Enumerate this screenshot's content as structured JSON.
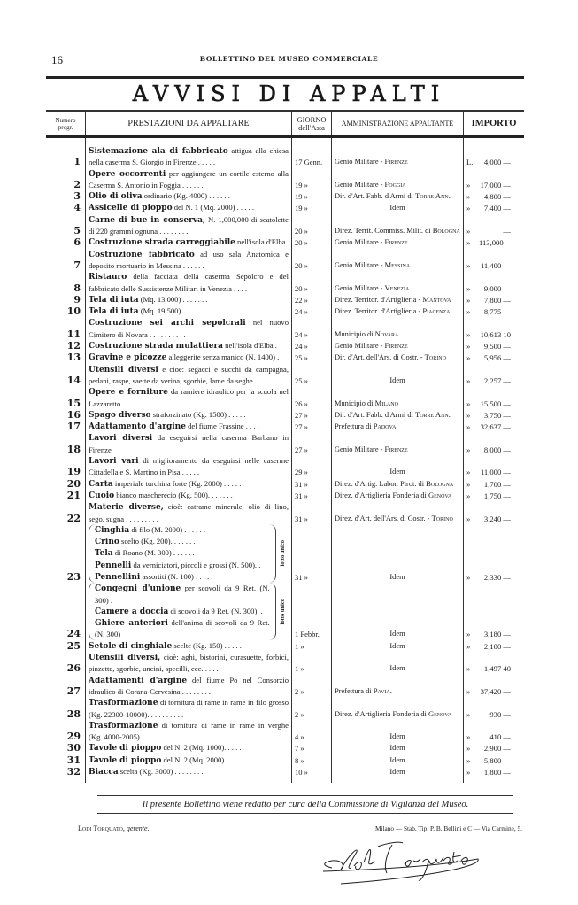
{
  "header": {
    "page_number": "16",
    "running_title": "BOLLETTINO DEL MUSEO COMMERCIALE",
    "title": "AVVISI DI APPALTI"
  },
  "columns": {
    "num_1": "Numero",
    "num_2": "progr.",
    "prestazioni": "PRESTAZIONI DA APPALTARE",
    "giorno_1": "GIORNO",
    "giorno_2": "dell'Asta",
    "amministrazione": "AMMINISTRAZIONE APPALTANTE",
    "importo": "IMPORTO"
  },
  "rows": [
    {
      "num": "1",
      "bold": "Sistemazione ala di fabbricato",
      "text": " attigua alla chiesa nella caserma S. Giorgio in Firenze . . . . .",
      "date": "17 Genn.",
      "admin": "Genio Militare - ",
      "city": "Firenze",
      "cur": "L.",
      "amount": "4,000 —"
    },
    {
      "num": "2",
      "bold": "Opere occorrenti",
      "text": " per aggiungere un cortile esterno alla Caserma S. Antonio in Foggia . . . . . .",
      "date": "19 »",
      "admin": "Genio Militare - ",
      "city": "Foggia",
      "cur": "»",
      "amount": "17,000 —"
    },
    {
      "num": "3",
      "bold": "Olio di oliva",
      "text": " ordinario (Kg. 4000) . . . . . .",
      "date": "19 »",
      "admin": "Dir. d'Art. Fabb. d'Armi di ",
      "city": "Torre Ann.",
      "cur": "»",
      "amount": "4,800 —"
    },
    {
      "num": "4",
      "bold": "Assicelle di pioppo",
      "text": " del N. 1 (Mq. 2000) . . . . .",
      "date": "19 »",
      "admin": "Idem",
      "city": "",
      "cur": "»",
      "amount": "7,400 —"
    },
    {
      "num": "5",
      "bold": "Carne di bue in conserva,",
      "text": " N. 1,000,000 di scatolette di 220 grammi ognuna . . . . . . . .",
      "date": "20 »",
      "admin": "Direz. Territ. Commiss. Milit. di ",
      "city": "Bologna",
      "cur": "»",
      "amount": "—"
    },
    {
      "num": "6",
      "bold": "Costruzione strada carreggiabile",
      "text": " nell'isola d'Elba",
      "date": "20 »",
      "admin": "Genio Militare - ",
      "city": "Firenze",
      "cur": "»",
      "amount": "113,000 —"
    },
    {
      "num": "7",
      "bold": "Costruzione fabbricato",
      "text": " ad uso sala Anatomica e deposito mortuario in Messina . . . . . .",
      "date": "20 »",
      "admin": "Genio Militare - ",
      "city": "Messina",
      "cur": "»",
      "amount": "11,400 —"
    },
    {
      "num": "8",
      "bold": "Ristauro",
      "text": " della facciata della caserma Sepolcro e del fabbricato delle Sussistenze Militari in Venezia . . . .",
      "date": "20 »",
      "admin": "Genio Militare - ",
      "city": "Venezia",
      "cur": "»",
      "amount": "9,000 —"
    },
    {
      "num": "9",
      "bold": "Tela di iuta",
      "text": " (Mq. 13,000) . . . . . . .",
      "date": "22 »",
      "admin": "Direz. Territor. d'Artiglieria - ",
      "city": "Mantova",
      "cur": "»",
      "amount": "7,800 —"
    },
    {
      "num": "10",
      "bold": "Tela di iuta",
      "text": " (Mq. 19,500) . . . . . . .",
      "date": "24 »",
      "admin": "Direz. Territor. d'Artiglieria - ",
      "city": "Piacenza",
      "cur": "»",
      "amount": "8,775 —"
    },
    {
      "num": "11",
      "bold": "Costruzione sei archi sepolcrali",
      "text": " nel nuovo Cimitero di Novara . . . . . . . . . .",
      "date": "24 »",
      "admin": "Municipio di ",
      "city": "Novara",
      "cur": "»",
      "amount": "10,613 10"
    },
    {
      "num": "12",
      "bold": "Costruzione strada mulattiera",
      "text": " nell'isola d'Elba .",
      "date": "24 »",
      "admin": "Genio Militare - ",
      "city": "Firenze",
      "cur": "»",
      "amount": "9,500 —"
    },
    {
      "num": "13",
      "bold": "Gravine e picozze",
      "text": " alleggerite senza manico (N. 1400) .",
      "date": "25 »",
      "admin": "Dir. d'Art. dell'Ars. di Costr. - ",
      "city": "Torino",
      "cur": "»",
      "amount": "5,956 —"
    },
    {
      "num": "14",
      "bold": "Utensili diversi",
      "text": " e cioè: segacci e succhi da campagna, pedani, raspe, saette da verina, sgorbie, lame da seghe . .",
      "date": "25 »",
      "admin": "Idem",
      "city": "",
      "cur": "»",
      "amount": "2,257 —"
    },
    {
      "num": "15",
      "bold": "Opere e forniture",
      "text": " da ramiere idraulico per la scuola nel Lazzaretto . . . . . . . . . .",
      "date": "26 »",
      "admin": "Municipio di ",
      "city": "Milano",
      "cur": "»",
      "amount": "15,500 —"
    },
    {
      "num": "16",
      "bold": "Spago diverso",
      "text": " straforzinato (Kg. 1500) . . . . .",
      "date": "27 »",
      "admin": "Dir. d'Art. Fabb. d'Armi di ",
      "city": "Torre Ann.",
      "cur": "»",
      "amount": "3,750 —"
    },
    {
      "num": "17",
      "bold": "Adattamento d'argine",
      "text": " del fiume Frassine . . . .",
      "date": "27 »",
      "admin": "Prefettura di ",
      "city": "Padova",
      "cur": "»",
      "amount": "32,637 —"
    },
    {
      "num": "18",
      "bold": "Lavori diversi",
      "text": " da eseguirsi nella caserma Barbano in Firenze",
      "date": "27 »",
      "admin": "Genio Militare - ",
      "city": "Firenze",
      "cur": "»",
      "amount": "8,000 —"
    },
    {
      "num": "19",
      "bold": "Lavori vari",
      "text": " di miglioramento da eseguirsi nelle caserme Cittadella e S. Martino in Pisa . . . . .",
      "date": "29 »",
      "admin": "Idem",
      "city": "",
      "cur": "»",
      "amount": "11,000 —"
    },
    {
      "num": "20",
      "bold": "Carta",
      "text": " imperiale turchina forte (Kg. 2000) . . . . .",
      "date": "31 »",
      "admin": "Direz. d'Artig. Labor. Pirot. di ",
      "city": "Bologna",
      "cur": "»",
      "amount": "1,700 —"
    },
    {
      "num": "21",
      "bold": "Cuoio",
      "text": " bianco mascherecio (Kg. 500). . . . . . .",
      "date": "31 »",
      "admin": "Direz. d'Artiglieria Fonderia di ",
      "city": "Genova",
      "cur": "»",
      "amount": "1,750 —"
    },
    {
      "num": "22",
      "bold": "Materie diverse,",
      "text": " cioè: catrame minerale, olio di lino, sego, sugna . . . . . . . . .",
      "date": "31 »",
      "admin": "Direz. d'Art. dell'Ars. di Costr. - ",
      "city": "Torino",
      "cur": "»",
      "amount": "3,240 —"
    },
    {
      "num": "23",
      "lot_label": "lotto unico",
      "items": [
        {
          "bold": "Cinghia",
          "text": " di filo (M. 2000) . . . . . ."
        },
        {
          "bold": "Crino",
          "text": " scelto (Kg. 200). . . . . . ."
        },
        {
          "bold": "Tela",
          "text": " di Roano (M. 300) . . . . . ."
        },
        {
          "bold": "Pennelli",
          "text": " da verniciatori, piccoli e grossi (N. 500). ."
        },
        {
          "bold": "Pennellini",
          "text": " assortiti (N. 100) . . . . ."
        }
      ],
      "date": "31 »",
      "admin": "Idem",
      "city": "",
      "cur": "»",
      "amount": "2,330 —"
    },
    {
      "num": "24",
      "lot_label": "lotto unico",
      "items": [
        {
          "bold": "Congegni d'unione",
          "text": " per scovoli da 9 Ret. (N. 300) ."
        },
        {
          "bold": "Camere a doccia",
          "text": " di scovoli da 9 Ret. (N. 300). ."
        },
        {
          "bold": "Ghiere anteriori",
          "text": " dell'anima di scovoli da 9 Ret. (N. 300)"
        }
      ],
      "date": "1 Febbr.",
      "admin": "Idem",
      "city": "",
      "cur": "»",
      "amount": "3,180 —"
    },
    {
      "num": "25",
      "bold": "Setole di cinghiale",
      "text": " scelte (Kg. 150) . . . . .",
      "date": "1 »",
      "admin": "Idem",
      "city": "",
      "cur": "»",
      "amount": "2,100 —"
    },
    {
      "num": "26",
      "bold": "Utensili diversi,",
      "text": " cioè: aghi, bistorini, curasuette, forbici, pinzette, sgorbie, uncini, specilli, ecc. . . . .",
      "date": "1 »",
      "admin": "Idem",
      "city": "",
      "cur": "»",
      "amount": "1,497 40"
    },
    {
      "num": "27",
      "bold": "Adattamenti d'argine",
      "text": " del fiume Po nel Consorzio idraulico di Corana-Cervesina . . . . . . . .",
      "date": "2 »",
      "admin": "Prefettura di ",
      "city": "Pavia.",
      "cur": "»",
      "amount": "37,420 —"
    },
    {
      "num": "28",
      "bold": "Trasformazione",
      "text": " di tornitura di rame in rame in filo grosso (Kg. 22300-10000). . . . . . . . . .",
      "date": "2 »",
      "admin": "Direz. d'Artiglieria Fonderia di ",
      "city": "Genova",
      "cur": "»",
      "amount": "930 —"
    },
    {
      "num": "29",
      "bold": "Trasformazione",
      "text": " di tornitura di rame in rame in verghe (Kg. 4000-2005) . . . . . . . . .",
      "date": "4 »",
      "admin": "Idem",
      "city": "",
      "cur": "»",
      "amount": "410 —"
    },
    {
      "num": "30",
      "bold": "Tavole di pioppo",
      "text": " del N. 2 (Mq. 1000). . . . .",
      "date": "7 »",
      "admin": "Idem",
      "city": "",
      "cur": "»",
      "amount": "2,900 —"
    },
    {
      "num": "31",
      "bold": "Tavole di pioppo",
      "text": " del N. 2 (Mq. 2000). . . . .",
      "date": "8 »",
      "admin": "Idem",
      "city": "",
      "cur": "»",
      "amount": "5,800 —"
    },
    {
      "num": "32",
      "bold": "Biacca",
      "text": " scelta (Kg. 3000) . . . . . . . .",
      "date": "10 »",
      "admin": "Idem",
      "city": "",
      "cur": "»",
      "amount": "1,800 —"
    }
  ],
  "footer": {
    "note": "Il presente Bollettino viene redatto per cura della Commissione di Vigilanza del Museo.",
    "gerente_name": "Lodi Torquato,",
    "gerente_role": " gerente.",
    "printer": "Milano — Stab. Tip. P. B. Bellini e C — Via Carmine, 5.",
    "signature": "Lodi Torquato"
  }
}
